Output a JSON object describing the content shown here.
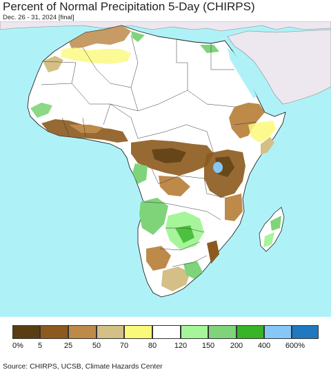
{
  "header": {
    "title": "Percent of Normal Precipitation 5-Day (CHIRPS)",
    "subtitle": "Dec. 26 - 31, 2024 [final]"
  },
  "map": {
    "region": "Africa",
    "ocean_color": "#aef2f8",
    "outside_region_color": "#ede7ef",
    "no_data_land_color": "#ffffff"
  },
  "legend": {
    "colors": [
      "#5a3d12",
      "#8c5a1e",
      "#bd8a4a",
      "#d4bf86",
      "#fbf97a",
      "#ffffff",
      "#a6f59a",
      "#7fd47a",
      "#37b427",
      "#86c7f8",
      "#1f78c0"
    ],
    "labels": [
      "0%",
      "5",
      "25",
      "50",
      "70",
      "80",
      "120",
      "150",
      "200",
      "400",
      "600%"
    ]
  },
  "footer": {
    "source": "Source: CHIRPS, UCSB, Climate Hazards Center"
  }
}
